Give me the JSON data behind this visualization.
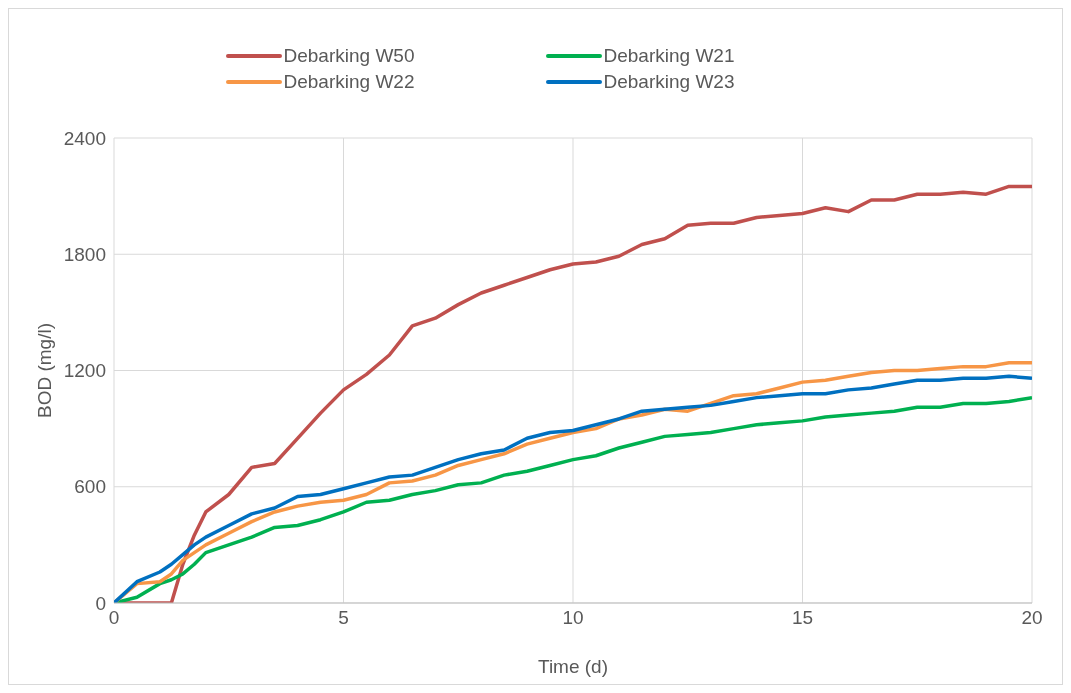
{
  "chart_data": {
    "type": "line",
    "xlabel": "Time (d)",
    "ylabel": "BOD (mg/l)",
    "x": [
      0,
      0.5,
      1,
      1.25,
      1.5,
      1.75,
      2,
      2.5,
      3,
      3.5,
      4,
      4.5,
      5,
      5.5,
      6,
      6.5,
      7,
      7.5,
      8,
      8.5,
      9,
      9.5,
      10,
      10.5,
      11,
      11.5,
      12,
      12.5,
      13,
      13.5,
      14,
      14.5,
      15,
      15.5,
      16,
      16.5,
      17,
      17.5,
      18,
      18.5,
      19,
      19.5,
      20
    ],
    "series": [
      {
        "name": "Debarking W50",
        "color": "#c0504d",
        "values": [
          0,
          0,
          0,
          0,
          200,
          350,
          470,
          560,
          700,
          720,
          850,
          980,
          1100,
          1180,
          1280,
          1430,
          1470,
          1540,
          1600,
          1640,
          1680,
          1720,
          1750,
          1760,
          1790,
          1850,
          1880,
          1950,
          1960,
          1960,
          1990,
          2000,
          2010,
          2040,
          2020,
          2080,
          2080,
          2110,
          2110,
          2120,
          2110,
          2150,
          2150
        ]
      },
      {
        "name": "Debarking W21",
        "color": "#00b050",
        "values": [
          0,
          30,
          100,
          120,
          150,
          200,
          260,
          300,
          340,
          390,
          400,
          430,
          470,
          520,
          530,
          560,
          580,
          610,
          620,
          660,
          680,
          710,
          740,
          760,
          800,
          830,
          860,
          870,
          880,
          900,
          920,
          930,
          940,
          960,
          970,
          980,
          990,
          1010,
          1010,
          1030,
          1030,
          1040,
          1060
        ]
      },
      {
        "name": "Debarking W22",
        "color": "#f79646",
        "values": [
          0,
          100,
          110,
          150,
          220,
          260,
          300,
          360,
          420,
          470,
          500,
          520,
          530,
          560,
          620,
          630,
          660,
          710,
          740,
          770,
          820,
          850,
          880,
          900,
          950,
          970,
          1000,
          990,
          1030,
          1070,
          1080,
          1110,
          1140,
          1150,
          1170,
          1190,
          1200,
          1200,
          1210,
          1220,
          1220,
          1240,
          1240
        ]
      },
      {
        "name": "Debarking W23",
        "color": "#0070c0",
        "values": [
          0,
          110,
          160,
          200,
          250,
          300,
          340,
          400,
          460,
          490,
          550,
          560,
          590,
          620,
          650,
          660,
          700,
          740,
          770,
          790,
          850,
          880,
          890,
          920,
          950,
          990,
          1000,
          1010,
          1020,
          1040,
          1060,
          1070,
          1080,
          1080,
          1100,
          1110,
          1130,
          1150,
          1150,
          1160,
          1160,
          1170,
          1160
        ]
      }
    ],
    "xlim": [
      0,
      20
    ],
    "xticks": [
      0,
      5,
      10,
      15,
      20
    ],
    "ylim": [
      0,
      2400
    ],
    "yticks": [
      0,
      600,
      1200,
      1800,
      2400
    ],
    "grid": true,
    "legend": "top",
    "marker": "none",
    "line_style": "solid"
  }
}
